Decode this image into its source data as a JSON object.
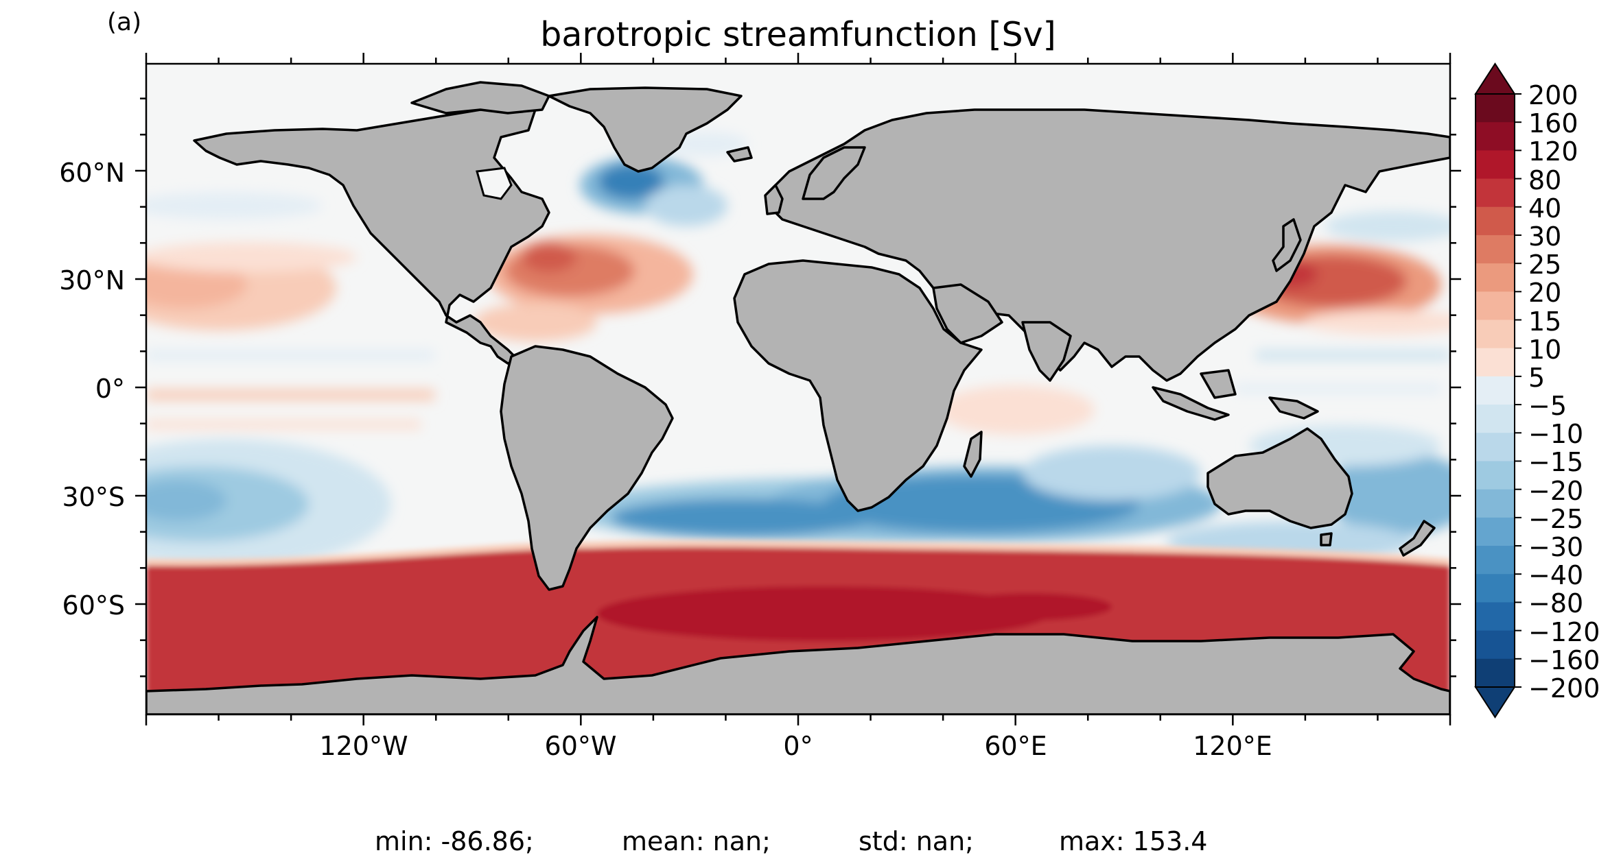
{
  "panel_label": "(a)",
  "title": "barotropic streamfunction [Sv]",
  "y_ticks": [
    "60°N",
    "30°N",
    "0°",
    "30°S",
    "60°S"
  ],
  "x_ticks": [
    "120°W",
    "60°W",
    "0°",
    "60°E",
    "120°E"
  ],
  "colorbar": {
    "labels": [
      "200",
      "160",
      "120",
      "80",
      "40",
      "30",
      "25",
      "20",
      "15",
      "10",
      "5",
      "−5",
      "−10",
      "−15",
      "−20",
      "−25",
      "−30",
      "−40",
      "−80",
      "−120",
      "−160",
      "−200"
    ],
    "colors": [
      "#6b0a1e",
      "#8e0d25",
      "#b0172a",
      "#c2343a",
      "#d05a4b",
      "#de7b63",
      "#eb9a7e",
      "#f4b59d",
      "#f8ccb8",
      "#fbe0d4",
      "#f6f6f6",
      "#e4eef5",
      "#d1e5f0",
      "#bad8ea",
      "#9ecae1",
      "#82b8d8",
      "#64a5cf",
      "#4a92c3",
      "#3480b8",
      "#2268a8",
      "#175494",
      "#0f3f75"
    ]
  },
  "map": {
    "land_color": "#b3b3b3",
    "ocean_background": "#f5f6f6",
    "coastline_color": "#000000"
  },
  "stats": {
    "min": "min: -86.86;",
    "mean": "mean: nan;",
    "std": "std: nan;",
    "max": "max: 153.4"
  }
}
